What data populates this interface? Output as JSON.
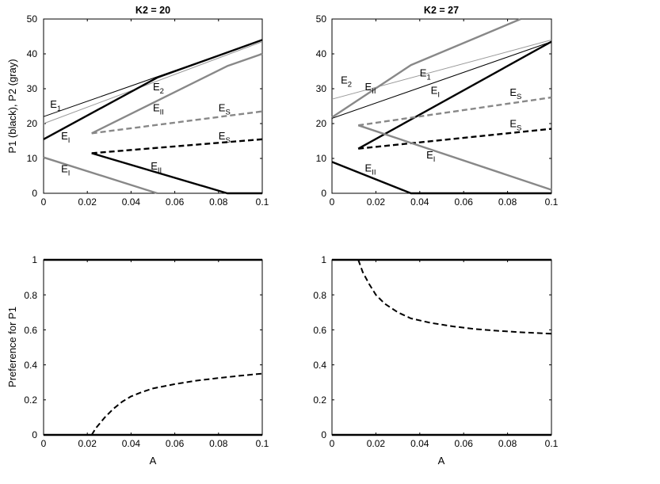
{
  "chart_data": [
    {
      "type": "line",
      "title": "K2 = 20",
      "xlabel": "",
      "ylabel": "P1 (black), P2 (gray)",
      "xlim": [
        0,
        0.1
      ],
      "ylim": [
        0,
        50
      ],
      "xticks": [
        "0",
        "0.02",
        "0.04",
        "0.06",
        "0.08",
        "0.1"
      ],
      "yticks": [
        "0",
        "10",
        "20",
        "30",
        "40",
        "50"
      ],
      "grid": false,
      "series": [
        {
          "color": "#000000",
          "width": 1.0,
          "dash": false,
          "x": [
            0,
            0.1
          ],
          "y": [
            22,
            44
          ]
        },
        {
          "color": "#999999",
          "width": 1.0,
          "dash": false,
          "x": [
            0,
            0.1
          ],
          "y": [
            20,
            43.5
          ]
        },
        {
          "color": "#000000",
          "width": 2.4,
          "dash": false,
          "x": [
            0,
            0.052,
            0.1
          ],
          "y": [
            15.5,
            33.2,
            44
          ]
        },
        {
          "color": "#888888",
          "width": 2.4,
          "dash": false,
          "x": [
            0.022,
            0.084,
            0.1
          ],
          "y": [
            17.2,
            36.5,
            40
          ]
        },
        {
          "color": "#888888",
          "width": 2.4,
          "dash": true,
          "x": [
            0.022,
            0.1
          ],
          "y": [
            17.2,
            23.5
          ]
        },
        {
          "color": "#000000",
          "width": 2.4,
          "dash": true,
          "x": [
            0.022,
            0.1
          ],
          "y": [
            11.5,
            15.5
          ]
        },
        {
          "color": "#000000",
          "width": 2.4,
          "dash": false,
          "x": [
            0.022,
            0.084,
            0.1
          ],
          "y": [
            11.5,
            0,
            0
          ]
        },
        {
          "color": "#888888",
          "width": 2.4,
          "dash": false,
          "x": [
            0,
            0.052
          ],
          "y": [
            10.3,
            0
          ]
        }
      ],
      "annotations": [
        {
          "label": "E",
          "sub": "1",
          "x": 0.003,
          "y": 24.5
        },
        {
          "label": "E",
          "sub": "2",
          "x": 0.05,
          "y": 29.5
        },
        {
          "label": "E",
          "sub": "II",
          "x": 0.05,
          "y": 23.5
        },
        {
          "label": "E",
          "sub": "I",
          "x": 0.008,
          "y": 15.5
        },
        {
          "label": "E",
          "sub": "S",
          "x": 0.08,
          "y": 23.5
        },
        {
          "label": "E",
          "sub": "S",
          "x": 0.08,
          "y": 15.5
        },
        {
          "label": "E",
          "sub": "I",
          "x": 0.008,
          "y": 6.0
        },
        {
          "label": "E",
          "sub": "II",
          "x": 0.049,
          "y": 6.8
        }
      ]
    },
    {
      "type": "line",
      "title": "K2 = 27",
      "xlabel": "",
      "ylabel": "",
      "xlim": [
        0,
        0.1
      ],
      "ylim": [
        0,
        50
      ],
      "xticks": [
        "0",
        "0.02",
        "0.04",
        "0.06",
        "0.08",
        "0.1"
      ],
      "yticks": [
        "0",
        "10",
        "20",
        "30",
        "40",
        "50"
      ],
      "grid": false,
      "series": [
        {
          "color": "#999999",
          "width": 1.0,
          "dash": false,
          "x": [
            0,
            0.1
          ],
          "y": [
            27,
            44
          ]
        },
        {
          "color": "#000000",
          "width": 1.0,
          "dash": false,
          "x": [
            0,
            0.1
          ],
          "y": [
            21.5,
            43.5
          ]
        },
        {
          "color": "#888888",
          "width": 2.4,
          "dash": false,
          "x": [
            0,
            0.036,
            0.086
          ],
          "y": [
            21.8,
            36.8,
            50
          ]
        },
        {
          "color": "#000000",
          "width": 2.4,
          "dash": false,
          "x": [
            0.012,
            0.1
          ],
          "y": [
            12.8,
            43.5
          ]
        },
        {
          "color": "#888888",
          "width": 2.4,
          "dash": true,
          "x": [
            0.012,
            0.1
          ],
          "y": [
            19.5,
            27.5
          ]
        },
        {
          "color": "#000000",
          "width": 2.4,
          "dash": true,
          "x": [
            0.012,
            0.1
          ],
          "y": [
            12.8,
            18.5
          ]
        },
        {
          "color": "#888888",
          "width": 2.4,
          "dash": false,
          "x": [
            0.012,
            0.1
          ],
          "y": [
            19.5,
            1.0
          ]
        },
        {
          "color": "#000000",
          "width": 2.4,
          "dash": false,
          "x": [
            0,
            0.036,
            0.1
          ],
          "y": [
            9,
            0,
            0
          ]
        }
      ],
      "annotations": [
        {
          "label": "E",
          "sub": "2",
          "x": 0.004,
          "y": 31.5
        },
        {
          "label": "E",
          "sub": "II",
          "x": 0.015,
          "y": 29.5
        },
        {
          "label": "E",
          "sub": "1",
          "x": 0.04,
          "y": 33.5
        },
        {
          "label": "E",
          "sub": "I",
          "x": 0.045,
          "y": 28.5
        },
        {
          "label": "E",
          "sub": "S",
          "x": 0.081,
          "y": 28.0
        },
        {
          "label": "E",
          "sub": "S",
          "x": 0.081,
          "y": 19.0
        },
        {
          "label": "E",
          "sub": "I",
          "x": 0.043,
          "y": 10.0
        },
        {
          "label": "E",
          "sub": "II",
          "x": 0.015,
          "y": 6.3
        }
      ]
    },
    {
      "type": "line",
      "title": "",
      "xlabel": "A",
      "ylabel": "Preference for P1",
      "xlim": [
        0,
        0.1
      ],
      "ylim": [
        0,
        1
      ],
      "xticks": [
        "0",
        "0.02",
        "0.04",
        "0.06",
        "0.08",
        "0.1"
      ],
      "yticks": [
        "0",
        "0.2",
        "0.4",
        "0.6",
        "0.8",
        "1"
      ],
      "grid": false,
      "series": [
        {
          "color": "#000000",
          "width": 2.4,
          "dash": false,
          "x": [
            0,
            0.1
          ],
          "y": [
            1,
            1
          ]
        },
        {
          "color": "#000000",
          "width": 2.4,
          "dash": false,
          "x": [
            0,
            0.1
          ],
          "y": [
            0,
            0
          ]
        },
        {
          "color": "#000000",
          "width": 2.0,
          "dash": true,
          "x": [
            0.022,
            0.024,
            0.028,
            0.032,
            0.036,
            0.04,
            0.045,
            0.05,
            0.06,
            0.07,
            0.08,
            0.09,
            0.1
          ],
          "y": [
            0,
            0.04,
            0.1,
            0.15,
            0.19,
            0.22,
            0.245,
            0.265,
            0.29,
            0.31,
            0.325,
            0.338,
            0.35
          ]
        }
      ],
      "annotations": []
    },
    {
      "type": "line",
      "title": "",
      "xlabel": "A",
      "ylabel": "",
      "xlim": [
        0,
        0.1
      ],
      "ylim": [
        0,
        1
      ],
      "xticks": [
        "0",
        "0.02",
        "0.04",
        "0.06",
        "0.08",
        "0.1"
      ],
      "yticks": [
        "0",
        "0.2",
        "0.4",
        "0.6",
        "0.8",
        "1"
      ],
      "grid": false,
      "series": [
        {
          "color": "#000000",
          "width": 2.4,
          "dash": false,
          "x": [
            0,
            0.1
          ],
          "y": [
            1,
            1
          ]
        },
        {
          "color": "#000000",
          "width": 2.4,
          "dash": false,
          "x": [
            0,
            0.1
          ],
          "y": [
            0,
            0
          ]
        },
        {
          "color": "#000000",
          "width": 2.0,
          "dash": true,
          "x": [
            0.012,
            0.014,
            0.017,
            0.02,
            0.024,
            0.03,
            0.036,
            0.045,
            0.055,
            0.065,
            0.075,
            0.085,
            0.1
          ],
          "y": [
            1.0,
            0.93,
            0.86,
            0.8,
            0.75,
            0.7,
            0.665,
            0.64,
            0.62,
            0.605,
            0.595,
            0.587,
            0.578
          ]
        }
      ],
      "annotations": []
    }
  ]
}
